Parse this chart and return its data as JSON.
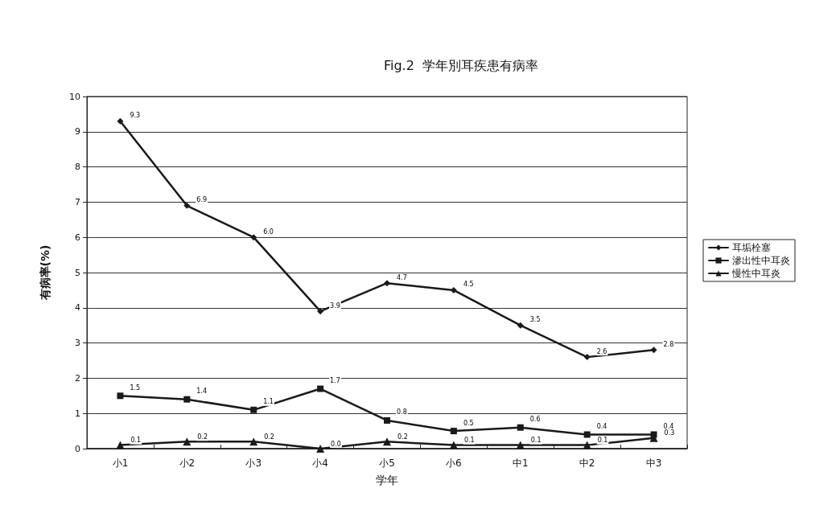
{
  "chart_data": {
    "type": "line",
    "title": "Fig.2  学年別耳疾患有病率",
    "xlabel": "学年",
    "ylabel": "有病率(%)",
    "categories": [
      "小1",
      "小2",
      "小3",
      "小4",
      "小5",
      "小6",
      "中1",
      "中2",
      "中3"
    ],
    "series": [
      {
        "name": "耳垢栓塞",
        "color": "#1a1a1a",
        "marker": "diamond",
        "values": [
          9.3,
          6.9,
          6.0,
          3.9,
          4.7,
          4.5,
          3.5,
          2.6,
          2.8
        ],
        "value_labels": [
          "9.3",
          "6.9",
          "6.0",
          "3.9",
          "4.7",
          "4.5",
          "3.5",
          "2.6",
          "2.8"
        ]
      },
      {
        "name": "滲出性中耳炎",
        "color": "#1a1a1a",
        "marker": "square",
        "values": [
          1.5,
          1.4,
          1.1,
          1.7,
          0.8,
          0.5,
          0.6,
          0.4,
          0.4
        ],
        "value_labels": [
          "1.5",
          "1.4",
          "1.1",
          "1.7",
          "0.8",
          "0.5",
          "0.6",
          "0.4",
          "0.4"
        ]
      },
      {
        "name": "慢性中耳炎",
        "color": "#1a1a1a",
        "marker": "triangle",
        "values": [
          0.1,
          0.2,
          0.2,
          0.0,
          0.2,
          0.1,
          0.1,
          0.1,
          0.3
        ],
        "value_labels": [
          "0.1",
          "0.2",
          "0.2",
          "0.0",
          "0.2",
          "0.1",
          "0.1",
          "0.1",
          "0.3"
        ]
      }
    ],
    "ylim": [
      0,
      10
    ],
    "yticks": [
      0,
      1,
      2,
      3,
      4,
      5,
      6,
      7,
      8,
      9,
      10
    ],
    "grid": "y",
    "legend": "right",
    "line_style": "solid"
  }
}
